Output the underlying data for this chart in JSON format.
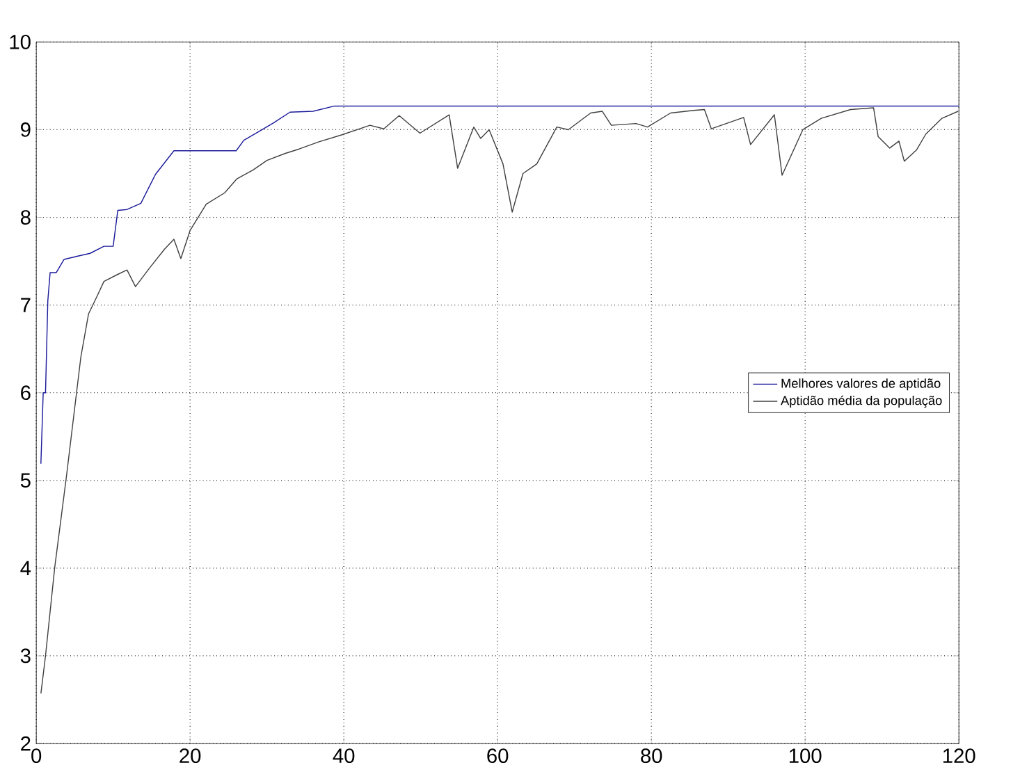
{
  "chart_data": {
    "type": "line",
    "xlim": [
      0,
      120
    ],
    "ylim": [
      2,
      10
    ],
    "xticks": [
      0,
      20,
      40,
      60,
      80,
      100,
      120
    ],
    "yticks": [
      2,
      3,
      4,
      5,
      6,
      7,
      8,
      9,
      10
    ],
    "grid": true,
    "legend": "right",
    "line_style": "solid",
    "series": [
      {
        "name": "Melhores valores de aptidão",
        "color": "#1a1a9a",
        "x": [
          0.6,
          0.9,
          1.2,
          1.5,
          1.8,
          2.6,
          3.6,
          5.5,
          7,
          8.8,
          10,
          10.6,
          11.8,
          13.6,
          15.5,
          17.9,
          26,
          27,
          28.8,
          30.9,
          33,
          36,
          38.8,
          120
        ],
        "values": [
          5.19,
          6.0,
          6.0,
          7.05,
          7.37,
          7.37,
          7.52,
          7.56,
          7.59,
          7.67,
          7.67,
          8.08,
          8.09,
          8.16,
          8.49,
          8.76,
          8.76,
          8.88,
          8.97,
          9.08,
          9.2,
          9.21,
          9.27,
          9.27
        ]
      },
      {
        "name": "Aptidão média da população",
        "color": "#404040",
        "x": [
          0.6,
          1.2,
          2.4,
          3.9,
          5.8,
          6.8,
          7.9,
          8.8,
          10.6,
          11.8,
          12.9,
          14.8,
          16.7,
          17.9,
          18.8,
          20,
          22.1,
          24.5,
          26.1,
          28.2,
          30,
          32.4,
          34.2,
          36.7,
          39.7,
          43.4,
          45.2,
          47.2,
          49.9,
          53.7,
          54.8,
          56.9,
          57.8,
          58.9,
          60.7,
          61.9,
          63.3,
          65.1,
          67.7,
          69.2,
          72.1,
          73.6,
          74.8,
          78,
          79.5,
          82.5,
          85.5,
          86.9,
          87.8,
          92,
          92.9,
          96,
          97,
          99.7,
          102.1,
          105.9,
          108.9,
          109.5,
          111,
          112.2,
          112.9,
          114.5,
          115.7,
          117.8,
          119.9
        ],
        "values": [
          2.57,
          3.0,
          4.01,
          5.03,
          6.41,
          6.9,
          7.1,
          7.27,
          7.35,
          7.4,
          7.21,
          7.43,
          7.64,
          7.75,
          7.53,
          7.85,
          8.15,
          8.28,
          8.44,
          8.54,
          8.65,
          8.73,
          8.78,
          8.86,
          8.94,
          9.05,
          9.01,
          9.16,
          8.96,
          9.17,
          8.56,
          9.03,
          8.9,
          9.0,
          8.61,
          8.06,
          8.5,
          8.61,
          9.03,
          9.0,
          9.19,
          9.21,
          9.05,
          9.07,
          9.03,
          9.19,
          9.22,
          9.23,
          9.01,
          9.14,
          8.83,
          9.17,
          8.48,
          9.0,
          9.13,
          9.23,
          9.25,
          8.92,
          8.79,
          8.87,
          8.64,
          8.77,
          8.95,
          9.13,
          9.21
        ]
      }
    ]
  }
}
